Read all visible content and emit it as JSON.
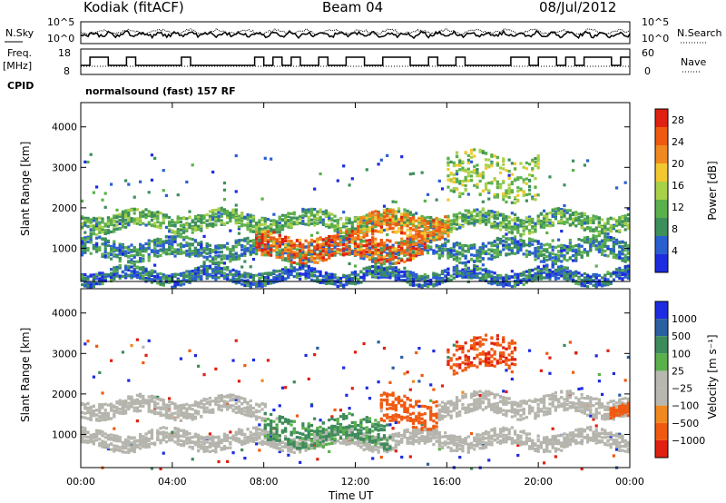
{
  "header": {
    "station": "Kodiak (fitACF)",
    "beam": "Beam 04",
    "date": "08/Jul/2012"
  },
  "top_panels": {
    "nsky_label": "N.Sky",
    "nsky_ticks": [
      "10^5",
      "10^0"
    ],
    "nsearch_label": "N.Search",
    "nsearch_ticks": [
      "10^5",
      "10^0"
    ],
    "freq_label": "Freq.",
    "freq_unit": "[MHz]",
    "freq_ticks": [
      "18",
      "8"
    ],
    "nave_label": "Nave",
    "nave_ticks": [
      "60",
      "0"
    ],
    "cpid_label": "CPID",
    "cpid_value": "normalsound (fast) 157 RF"
  },
  "colors": {
    "power_scale": [
      "#1d2ce0",
      "#2a5fd0",
      "#3d8f5b",
      "#5bb04c",
      "#a8d048",
      "#f2c830",
      "#f08a20",
      "#f05a10",
      "#e02010"
    ],
    "velocity_scale": [
      "#1d2ce0",
      "#2a5fa0",
      "#3d8a5b",
      "#5bb04c",
      "#b8b8b0",
      "#b8b8b0",
      "#f08a20",
      "#f05a10",
      "#e02010"
    ],
    "ground_scatter": "#b5b5ad"
  },
  "chart_data": [
    {
      "type": "heatmap",
      "title": "",
      "xlabel": "Time UT",
      "ylabel": "Slant Range [km]",
      "x_ticks": [
        "00:00",
        "04:00",
        "08:00",
        "12:00",
        "16:00",
        "20:00",
        "00:00"
      ],
      "y_ticks": [
        "1000",
        "2000",
        "3000",
        "4000"
      ],
      "xlim_hours": [
        0,
        24
      ],
      "ylim_km": [
        180,
        4600
      ],
      "colorbar_label": "Power [dB]",
      "colorbar_ticks": [
        "4",
        "8",
        "12",
        "16",
        "20",
        "24",
        "28"
      ],
      "colorbar_range": [
        0,
        30
      ],
      "features": [
        {
          "name": "band",
          "t0": 0.0,
          "t1": 24.0,
          "r": 1700,
          "w": 260,
          "val": 11
        },
        {
          "name": "band",
          "t0": 0.0,
          "t1": 24.0,
          "r": 1000,
          "w": 300,
          "val": 8
        },
        {
          "name": "band",
          "t0": 7.5,
          "t1": 15.0,
          "r": 1050,
          "w": 380,
          "val": 24
        },
        {
          "name": "band",
          "t0": 12.0,
          "t1": 16.0,
          "r": 1600,
          "w": 350,
          "val": 22
        },
        {
          "name": "band",
          "t0": 16.0,
          "t1": 20.0,
          "r": 2800,
          "w": 700,
          "val": 14
        },
        {
          "name": "band",
          "t0": 0.0,
          "t1": 24.0,
          "r": 350,
          "w": 200,
          "val": 6
        }
      ]
    },
    {
      "type": "heatmap",
      "title": "",
      "xlabel": "Time UT",
      "ylabel": "Slant Range [km]",
      "x_ticks": [
        "00:00",
        "04:00",
        "08:00",
        "12:00",
        "16:00",
        "20:00",
        "00:00"
      ],
      "y_ticks": [
        "1000",
        "2000",
        "3000",
        "4000"
      ],
      "xlim_hours": [
        0,
        24
      ],
      "ylim_km": [
        180,
        4600
      ],
      "colorbar_label": "Velocity [m s⁻¹]",
      "colorbar_ticks": [
        "1000",
        "500",
        "100",
        "25",
        "−25",
        "−100",
        "−500",
        "−1000"
      ],
      "colorbar_range": [
        -1200,
        1200
      ],
      "features": [
        {
          "name": "ground",
          "t0": 0.0,
          "t1": 8.0,
          "r": 1700,
          "w": 260,
          "val": 0
        },
        {
          "name": "ground",
          "t0": 15.5,
          "t1": 24.0,
          "r": 1750,
          "w": 300,
          "val": 0
        },
        {
          "name": "ground",
          "t0": 0.0,
          "t1": 24.0,
          "r": 900,
          "w": 250,
          "val": 0
        },
        {
          "name": "flow",
          "t0": 8.0,
          "t1": 13.5,
          "r": 1100,
          "w": 420,
          "val": 150
        },
        {
          "name": "flow",
          "t0": 13.0,
          "t1": 15.5,
          "r": 1600,
          "w": 450,
          "val": -350
        },
        {
          "name": "flow",
          "t0": 16.0,
          "t1": 19.0,
          "r": 3000,
          "w": 500,
          "val": -450
        },
        {
          "name": "flow",
          "t0": 23.0,
          "t1": 24.0,
          "r": 1650,
          "w": 150,
          "val": -300
        }
      ]
    }
  ]
}
